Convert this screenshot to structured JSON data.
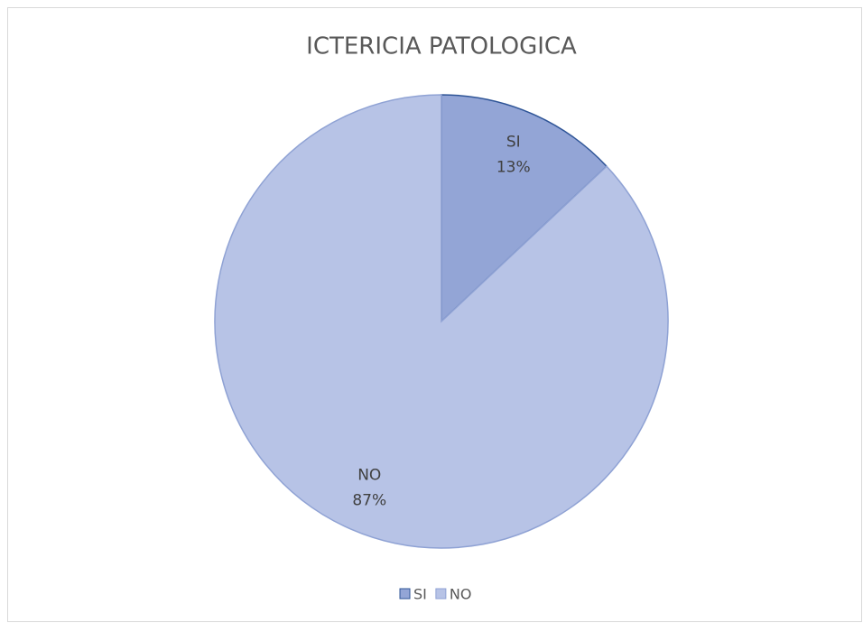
{
  "chart_data": {
    "type": "pie",
    "title": "ICTERICIA PATOLOGICA",
    "categories": [
      "SI",
      "NO"
    ],
    "values": [
      13,
      87
    ],
    "value_labels": [
      "13%",
      "87%"
    ],
    "colors": [
      "#93a5d6",
      "#b7c3e6"
    ],
    "edge_colors": [
      "#2f5597",
      "#8fa2d4"
    ],
    "legend": "bottom"
  }
}
